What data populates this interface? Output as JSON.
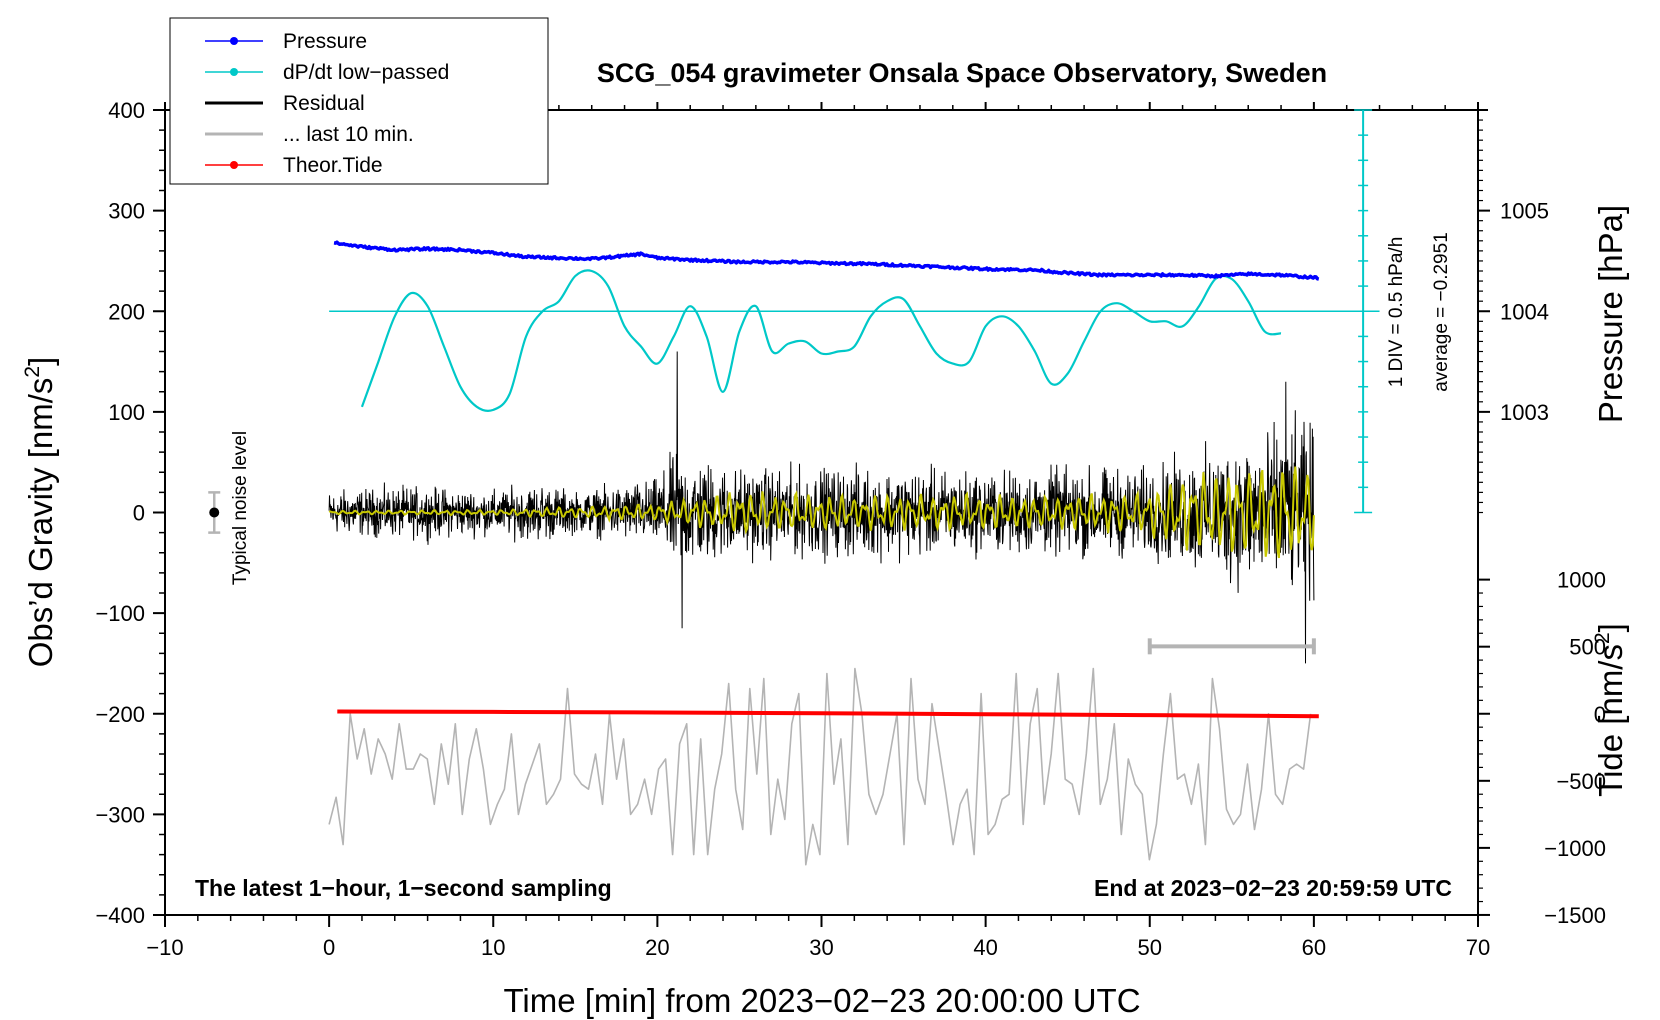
{
  "chart_data": {
    "type": "line",
    "title": "SCG_054 gravimeter Onsala Space Observatory, Sweden",
    "xlabel": "Time [min] from 2023−02−23 20:00:00 UTC",
    "ylabel_left": "Obs’d Gravity [nm/s",
    "ylabel_left_sup": "2",
    "ylabel_left_close": "]",
    "ylabel_right_pressure": "Pressure [hPa]",
    "ylabel_right_tide": "Tide [nm/s",
    "ylabel_right_tide_sup": "2",
    "ylabel_right_tide_close": "]",
    "xlim": [
      -10,
      70
    ],
    "ylim": [
      -400,
      400
    ],
    "x_ticks": [
      "−10",
      "0",
      "10",
      "20",
      "30",
      "40",
      "50",
      "60",
      "70"
    ],
    "y_ticks": [
      "400",
      "300",
      "200",
      "100",
      "0",
      "−100",
      "−200",
      "−300",
      "−400"
    ],
    "pressure_axis": {
      "ticks": [
        "1005",
        "1004",
        "1003"
      ],
      "tick_values": [
        1005,
        1004,
        1003
      ],
      "gravity_at_1004": 200,
      "gravity_per_hpa": 100
    },
    "tide_axis": {
      "ticks": [
        "1000",
        "500",
        "0",
        "−500",
        "−1000",
        "−1500"
      ],
      "tick_values": [
        1000,
        500,
        0,
        -500,
        -1000,
        -1500
      ],
      "gravity_at_zero": -200,
      "gravity_per_1000": 133.3
    },
    "legend": [
      {
        "label": "Pressure",
        "color": "#0000ff",
        "marker": true
      },
      {
        "label": "dP/dt low−passed",
        "color": "#00c8c8",
        "marker": true
      },
      {
        "label": "Residual",
        "color": "#000000",
        "marker": false
      },
      {
        "label": "... last 10 min.",
        "color": "#b4b4b4",
        "marker": false
      },
      {
        "label": "Theor.Tide",
        "color": "#ff0000",
        "marker": true
      }
    ],
    "series": [
      {
        "name": "Pressure",
        "color": "#0000ff",
        "x": [
          0.3,
          2,
          4,
          6,
          8,
          10,
          12,
          14,
          16,
          18,
          19,
          20,
          22,
          25,
          28,
          30,
          33,
          36,
          40,
          43,
          45,
          47,
          50,
          52,
          54,
          56,
          58,
          60.3
        ],
        "values": [
          268,
          264,
          261,
          262,
          261,
          258,
          254,
          253,
          252,
          255,
          257,
          253,
          251,
          249,
          249,
          248,
          247,
          245,
          242,
          241,
          238,
          236,
          236,
          236,
          235,
          237,
          236,
          233
        ]
      },
      {
        "name": "dP/dt low−passed",
        "color": "#00c8c8",
        "x": [
          2,
          3,
          4,
          5,
          6,
          7,
          8,
          9,
          10,
          11,
          12,
          13,
          14,
          15,
          16,
          17,
          18,
          19,
          20,
          21,
          22,
          23,
          24,
          25,
          26,
          27,
          28,
          29,
          30,
          31,
          32,
          33,
          34,
          35,
          36,
          37,
          38,
          39,
          40,
          41,
          42,
          43,
          44,
          45,
          46,
          47,
          48,
          49,
          50,
          51,
          52,
          53,
          54,
          55,
          56,
          57,
          58
        ],
        "values": [
          105,
          150,
          195,
          218,
          205,
          165,
          125,
          105,
          102,
          118,
          175,
          200,
          210,
          235,
          240,
          225,
          185,
          165,
          148,
          175,
          205,
          175,
          120,
          180,
          205,
          160,
          168,
          170,
          158,
          160,
          165,
          195,
          210,
          212,
          185,
          158,
          148,
          150,
          185,
          195,
          185,
          160,
          128,
          138,
          170,
          200,
          208,
          200,
          190,
          190,
          185,
          205,
          232,
          232,
          210,
          180,
          178
        ]
      },
      {
        "name": "Residual",
        "color": "#000000",
        "start": 0,
        "end": 60,
        "amplitude_envelope": {
          "x": [
            0,
            5,
            10,
            13,
            15,
            20,
            21,
            25,
            30,
            35,
            40,
            45,
            50,
            52,
            55,
            58,
            60
          ],
          "values": [
            30,
            35,
            30,
            40,
            28,
            45,
            80,
            60,
            60,
            60,
            55,
            60,
            60,
            75,
            95,
            115,
            120
          ]
        },
        "peaks_max": [
          {
            "x": 21.2,
            "value": 160
          },
          {
            "x": 58.3,
            "value": 130
          }
        ],
        "peaks_min": [
          {
            "x": 21.5,
            "value": -115
          },
          {
            "x": 59.5,
            "value": -150
          }
        ]
      },
      {
        "name": "Residual low−passed",
        "color": "#c8c800",
        "start": 0,
        "end": 60,
        "amplitude_envelope": {
          "x": [
            0,
            10,
            20,
            25,
            30,
            35,
            40,
            45,
            50,
            52,
            55,
            58,
            60
          ],
          "values": [
            2,
            3,
            10,
            25,
            20,
            20,
            20,
            20,
            25,
            45,
            50,
            60,
            55
          ]
        }
      },
      {
        "name": "... last 10 min.",
        "color": "#b4b4b4",
        "x_start": 0,
        "x_end": 59.8,
        "values": [
          -310,
          -283,
          -330,
          -200,
          -245,
          -215,
          -260,
          -225,
          -240,
          -265,
          -210,
          -255,
          -255,
          -240,
          -245,
          -290,
          -230,
          -270,
          -210,
          -300,
          -245,
          -215,
          -255,
          -310,
          -290,
          -275,
          -220,
          -300,
          -270,
          -250,
          -230,
          -290,
          -280,
          -265,
          -175,
          -260,
          -270,
          -275,
          -240,
          -290,
          -200,
          -265,
          -225,
          -300,
          -290,
          -265,
          -300,
          -255,
          -245,
          -340,
          -230,
          -210,
          -340,
          -225,
          -340,
          -275,
          -240,
          -170,
          -275,
          -315,
          -175,
          -260,
          -165,
          -320,
          -265,
          -305,
          -210,
          -180,
          -350,
          -310,
          -340,
          -160,
          -270,
          -225,
          -330,
          -155,
          -200,
          -280,
          -300,
          -280,
          -240,
          -200,
          -330,
          -165,
          -265,
          -290,
          -190,
          -235,
          -280,
          -330,
          -290,
          -275,
          -340,
          -180,
          -320,
          -310,
          -285,
          -280,
          -160,
          -310,
          -210,
          -175,
          -290,
          -240,
          -160,
          -265,
          -270,
          -300,
          -240,
          -155,
          -290,
          -265,
          -210,
          -320,
          -245,
          -270,
          -280,
          -345,
          -310,
          -240,
          -180,
          -265,
          -260,
          -290,
          -250,
          -330,
          -165,
          -215,
          -295,
          -310,
          -300,
          -250,
          -315,
          -275,
          -200,
          -280,
          -290,
          -255,
          -250,
          -255,
          -200
        ],
        "range_bar": {
          "x_from": 50,
          "x_to": 60,
          "value": -133
        }
      },
      {
        "name": "Theor.Tide",
        "color": "#ff0000",
        "x": [
          0.5,
          10,
          20,
          30,
          40,
          50,
          60.3
        ],
        "values": [
          -197.8,
          -198.2,
          -198.8,
          -199.6,
          -200.4,
          -201.3,
          -202.4
        ]
      }
    ],
    "dpdt_scale": {
      "x": 63,
      "y_from": 0,
      "y_to": 400,
      "zero_line_value": 200,
      "label_div": "1 DIV = 0.5 hPa/h",
      "label_avg": "average = −0.2951"
    },
    "noise_bar": {
      "x": -7,
      "value": 0,
      "half_range": 20,
      "label": "Typical noise level"
    },
    "annotations": {
      "bottom_left": "The latest 1−hour, 1−second sampling",
      "bottom_right": "End at 2023−02−23 20:59:59 UTC"
    }
  }
}
